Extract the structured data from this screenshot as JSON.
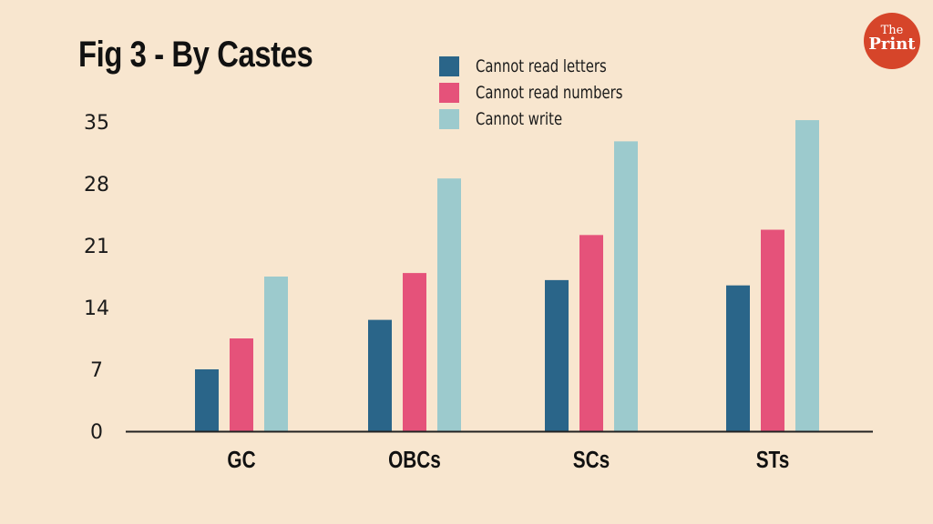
{
  "header": {
    "title": "Fig 3 - By Castes",
    "logo_top": "The",
    "logo_bottom": "Print"
  },
  "colors": {
    "background": "#f8e6cf",
    "cannot_read_letters": "#2a6589",
    "cannot_read_numbers": "#e5527a",
    "cannot_write": "#9ccacd",
    "logo": "#d6452a"
  },
  "chart_data": {
    "type": "bar",
    "title": "Fig 3 - By Castes",
    "xlabel": "",
    "ylabel": "",
    "categories": [
      "GC",
      "OBCs",
      "SCs",
      "STs"
    ],
    "series": [
      {
        "name": "Cannot read letters",
        "color": "#2a6589",
        "values": [
          7.0,
          12.6,
          17.1,
          16.5
        ]
      },
      {
        "name": "Cannot read numbers",
        "color": "#e5527a",
        "values": [
          10.5,
          17.9,
          22.2,
          22.8
        ]
      },
      {
        "name": "Cannot write",
        "color": "#9ccacd",
        "values": [
          17.5,
          28.6,
          32.8,
          35.2
        ]
      }
    ],
    "yticks": [
      0,
      7,
      14,
      21,
      28,
      35
    ],
    "ylim": [
      0,
      35
    ],
    "grid": false,
    "legend": "top-center"
  }
}
